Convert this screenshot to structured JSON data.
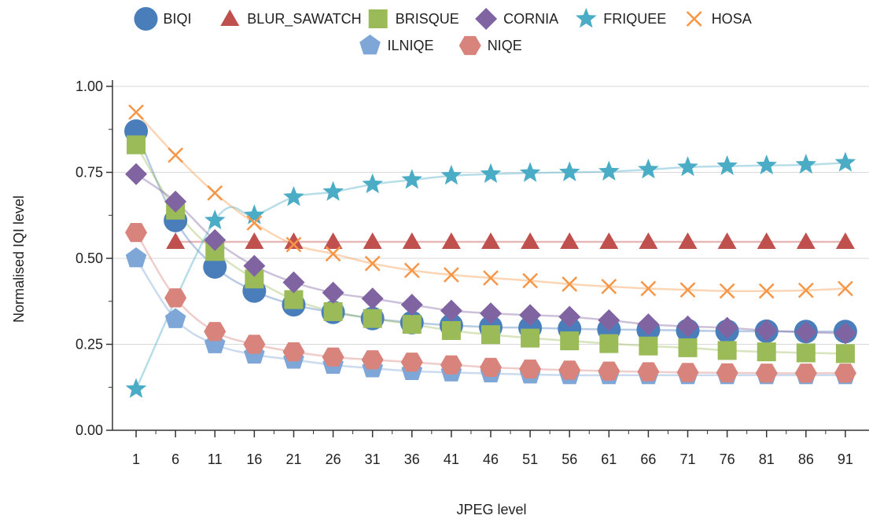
{
  "chart_data": {
    "type": "scatter",
    "title": "",
    "xlabel": "JPEG level",
    "ylabel": "Normalised IQI level",
    "x": [
      1,
      6,
      11,
      16,
      21,
      26,
      31,
      36,
      41,
      46,
      51,
      56,
      61,
      66,
      71,
      76,
      81,
      86,
      91
    ],
    "x_tick_labels": [
      "1",
      "6",
      "11",
      "16",
      "21",
      "26",
      "31",
      "36",
      "41",
      "46",
      "51",
      "56",
      "61",
      "66",
      "71",
      "76",
      "81",
      "86",
      "91"
    ],
    "y_tick_labels": [
      "0.00",
      "0.25",
      "0.50",
      "0.75",
      "1.00"
    ],
    "xlim": [
      -2,
      94
    ],
    "ylim": [
      0,
      1
    ],
    "grid": "horizontal",
    "legend_position": "top",
    "trendlines": true,
    "series": [
      {
        "name": "BIQI",
        "marker": "circle",
        "color": "#4a7ebb",
        "values": [
          0.87,
          0.61,
          0.475,
          0.405,
          0.365,
          0.343,
          0.325,
          0.313,
          0.305,
          0.3,
          0.298,
          0.295,
          0.293,
          0.292,
          0.29,
          0.288,
          0.288,
          0.287,
          0.287
        ]
      },
      {
        "name": "BLUR_SAWATCH",
        "marker": "triangle",
        "color": "#c0504d",
        "values": [
          null,
          0.548,
          0.548,
          0.548,
          0.548,
          0.548,
          0.548,
          0.548,
          0.548,
          0.548,
          0.548,
          0.548,
          0.548,
          0.548,
          0.548,
          0.548,
          0.548,
          0.548,
          0.548
        ]
      },
      {
        "name": "BRISQUE",
        "marker": "square",
        "color": "#9bbb59",
        "values": [
          0.83,
          0.64,
          0.52,
          0.44,
          0.38,
          0.345,
          0.325,
          0.308,
          0.29,
          0.278,
          0.268,
          0.26,
          0.252,
          0.245,
          0.24,
          0.232,
          0.228,
          0.225,
          0.223
        ]
      },
      {
        "name": "CORNIA",
        "marker": "diamond",
        "color": "#8064a2",
        "values": [
          0.745,
          0.665,
          0.553,
          0.478,
          0.43,
          0.4,
          0.383,
          0.365,
          0.348,
          0.34,
          0.335,
          0.33,
          0.32,
          0.308,
          0.302,
          0.298,
          0.29,
          0.285,
          0.282
        ]
      },
      {
        "name": "FRIQUEE",
        "marker": "star",
        "color": "#4bacc6",
        "values": [
          0.12,
          null,
          0.61,
          0.625,
          0.678,
          0.693,
          0.715,
          0.728,
          0.74,
          0.745,
          0.748,
          0.75,
          0.752,
          0.758,
          0.765,
          0.768,
          0.77,
          0.772,
          0.778
        ]
      },
      {
        "name": "HOSA",
        "marker": "cross",
        "color": "#f79646",
        "values": [
          0.925,
          0.8,
          0.69,
          0.603,
          0.54,
          0.513,
          0.485,
          0.465,
          0.452,
          0.443,
          0.435,
          0.425,
          0.418,
          0.412,
          0.408,
          0.405,
          0.405,
          0.407,
          0.412
        ]
      },
      {
        "name": "ILNIQE",
        "marker": "pentagon",
        "color": "#7ea6d6",
        "values": [
          0.5,
          0.323,
          0.25,
          0.22,
          0.205,
          0.19,
          0.18,
          0.172,
          0.168,
          0.165,
          0.162,
          0.16,
          0.16,
          0.16,
          0.16,
          0.16,
          0.16,
          0.16,
          0.16
        ]
      },
      {
        "name": "NIQE",
        "marker": "hexagon",
        "color": "#d8837c",
        "values": [
          0.575,
          0.385,
          0.287,
          0.25,
          0.228,
          0.213,
          0.205,
          0.198,
          0.19,
          0.183,
          0.178,
          0.175,
          0.172,
          0.17,
          0.168,
          0.167,
          0.166,
          0.166,
          0.166
        ]
      }
    ]
  }
}
